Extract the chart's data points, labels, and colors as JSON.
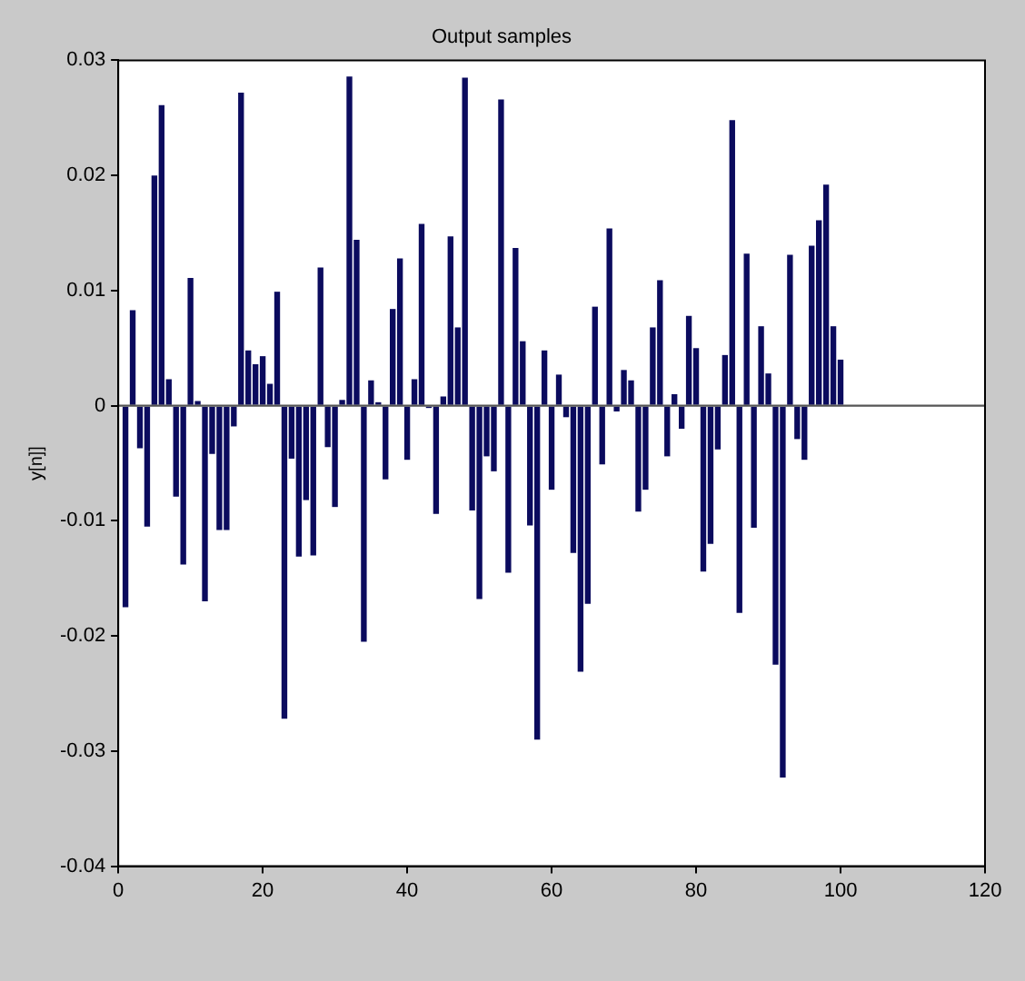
{
  "chart_data": {
    "type": "bar",
    "title": "Output samples",
    "ylabel": "y[n]]",
    "x": [
      1,
      2,
      3,
      4,
      5,
      6,
      7,
      8,
      9,
      10,
      11,
      12,
      13,
      14,
      15,
      16,
      17,
      18,
      19,
      20,
      21,
      22,
      23,
      24,
      25,
      26,
      27,
      28,
      29,
      30,
      31,
      32,
      33,
      34,
      35,
      36,
      37,
      38,
      39,
      40,
      41,
      42,
      43,
      44,
      45,
      46,
      47,
      48,
      49,
      50,
      51,
      52,
      53,
      54,
      55,
      56,
      57,
      58,
      59,
      60,
      61,
      62,
      63,
      64,
      65,
      66,
      67,
      68,
      69,
      70,
      71,
      72,
      73,
      74,
      75,
      76,
      77,
      78,
      79,
      80,
      81,
      82,
      83,
      84,
      85,
      86,
      87,
      88,
      89,
      90,
      91,
      92,
      93,
      94,
      95,
      96,
      97,
      98,
      99,
      100
    ],
    "values": [
      -0.0175,
      0.0083,
      -0.0037,
      -0.0105,
      0.02,
      0.0261,
      0.0023,
      -0.0079,
      -0.0138,
      0.0111,
      0.0004,
      -0.017,
      -0.0042,
      -0.0108,
      -0.0108,
      -0.0018,
      0.0272,
      0.0048,
      0.0036,
      0.0043,
      0.0019,
      0.0099,
      -0.0272,
      -0.0046,
      -0.0131,
      -0.0082,
      -0.013,
      0.012,
      -0.0036,
      -0.0088,
      0.0005,
      0.0286,
      0.0144,
      -0.0205,
      0.0022,
      0.0003,
      -0.0064,
      0.0084,
      0.0128,
      -0.0047,
      0.0023,
      0.0158,
      -0.0002,
      -0.0094,
      0.0008,
      0.0147,
      0.0068,
      0.0285,
      -0.0091,
      -0.0168,
      -0.0044,
      -0.0057,
      0.0266,
      -0.0145,
      0.0137,
      0.0056,
      -0.0104,
      -0.029,
      0.0048,
      -0.0073,
      0.0027,
      -0.001,
      -0.0128,
      -0.0231,
      -0.0172,
      0.0086,
      -0.0051,
      0.0154,
      -0.0005,
      0.0031,
      0.0022,
      -0.0092,
      -0.0073,
      0.0068,
      0.0109,
      -0.0044,
      0.001,
      -0.002,
      0.0078,
      0.005,
      -0.0144,
      -0.012,
      -0.0038,
      0.0044,
      0.0248,
      -0.018,
      0.0132,
      -0.0106,
      0.0069,
      0.0028,
      -0.0225,
      -0.0323,
      0.0131,
      -0.0029,
      -0.0047,
      0.0139,
      0.0161,
      0.0192,
      0.0069,
      0.004
    ],
    "color": "#0b0b5e",
    "xlim": [
      0,
      120
    ],
    "xticks": [
      0,
      20,
      40,
      60,
      80,
      100,
      120
    ],
    "ylim": [
      -0.04,
      0.03
    ],
    "yticks": [
      -0.04,
      -0.03,
      -0.02,
      -0.01,
      0,
      0.01,
      0.02,
      0.03
    ],
    "ref_lines": [
      {
        "axis": "y",
        "value": 0,
        "color": "#555555"
      }
    ],
    "grid": false,
    "legend": false
  }
}
